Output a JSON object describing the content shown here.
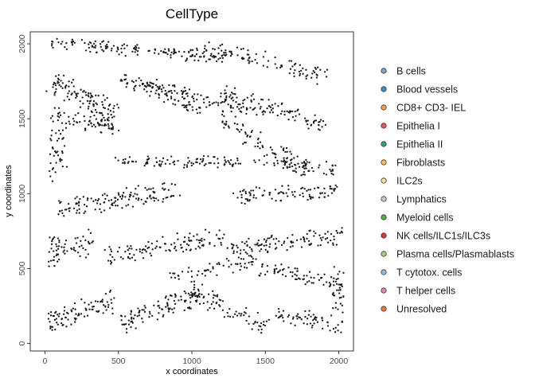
{
  "chart_data": {
    "type": "scatter",
    "title": "CellType",
    "xlabel": "x coordinates",
    "ylabel": "y coordinates",
    "xlim": [
      -100,
      2100
    ],
    "ylim": [
      -50,
      2080
    ],
    "xticks": [
      0,
      500,
      1000,
      1500,
      2000
    ],
    "yticks": [
      0,
      500,
      1000,
      1500,
      2000
    ],
    "xtick_labels": [
      "0",
      "500",
      "1000",
      "1500",
      "2000"
    ],
    "ytick_labels": [
      "0",
      "500",
      "1000",
      "1500",
      "2000"
    ],
    "grid": false,
    "legend_position": "right",
    "point_color": "#1a1a1a",
    "series": [
      {
        "name": "B cells",
        "color": "#7fa6c8"
      },
      {
        "name": "Blood vessels",
        "color": "#3f8fc7"
      },
      {
        "name": "CD8+ CD3- IEL",
        "color": "#f2a341"
      },
      {
        "name": "Epithelia I",
        "color": "#e05a6e"
      },
      {
        "name": "Epithelia II",
        "color": "#3aa36b"
      },
      {
        "name": "Fibroblasts",
        "color": "#f5c065"
      },
      {
        "name": "ILC2s",
        "color": "#f2e8a6"
      },
      {
        "name": "Lymphatics",
        "color": "#c9cbd0"
      },
      {
        "name": "Myeloid cells",
        "color": "#55b04b"
      },
      {
        "name": "NK cells/ILC1s/ILC3s",
        "color": "#d83a3a"
      },
      {
        "name": "Plasma cells/Plasmablasts",
        "color": "#a6d08d"
      },
      {
        "name": "T cytotox. cells",
        "color": "#8fc1e0"
      },
      {
        "name": "T helper cells",
        "color": "#d68fb8"
      },
      {
        "name": "Unresolved",
        "color": "#e8784a"
      }
    ],
    "regions": [
      {
        "cx": 640,
        "cy": 1960,
        "rx": 600,
        "ry": 55,
        "angle": -5,
        "n": 150
      },
      {
        "cx": 1500,
        "cy": 1880,
        "rx": 430,
        "ry": 70,
        "angle": -14,
        "n": 90
      },
      {
        "cx": 270,
        "cy": 1640,
        "rx": 250,
        "ry": 90,
        "angle": -28,
        "n": 110
      },
      {
        "cx": 800,
        "cy": 1660,
        "rx": 300,
        "ry": 50,
        "angle": -22,
        "n": 70
      },
      {
        "cx": 1050,
        "cy": 1640,
        "rx": 450,
        "ry": 60,
        "angle": -14,
        "n": 110
      },
      {
        "cx": 1550,
        "cy": 1570,
        "rx": 380,
        "ry": 60,
        "angle": -18,
        "n": 90
      },
      {
        "cx": 280,
        "cy": 1480,
        "rx": 240,
        "ry": 60,
        "angle": -12,
        "n": 70
      },
      {
        "cx": 90,
        "cy": 1270,
        "rx": 60,
        "ry": 200,
        "angle": 0,
        "n": 40
      },
      {
        "cx": 1480,
        "cy": 1330,
        "rx": 340,
        "ry": 80,
        "angle": -28,
        "n": 80
      },
      {
        "cx": 900,
        "cy": 1210,
        "rx": 450,
        "ry": 45,
        "angle": 0,
        "n": 90
      },
      {
        "cx": 1700,
        "cy": 1190,
        "rx": 280,
        "ry": 60,
        "angle": -8,
        "n": 60
      },
      {
        "cx": 500,
        "cy": 960,
        "rx": 420,
        "ry": 80,
        "angle": 10,
        "n": 130
      },
      {
        "cx": 1640,
        "cy": 1000,
        "rx": 360,
        "ry": 60,
        "angle": 3,
        "n": 90
      },
      {
        "cx": 200,
        "cy": 640,
        "rx": 140,
        "ry": 100,
        "angle": 20,
        "n": 40
      },
      {
        "cx": 820,
        "cy": 650,
        "rx": 420,
        "ry": 80,
        "angle": 8,
        "n": 110
      },
      {
        "cx": 1650,
        "cy": 680,
        "rx": 380,
        "ry": 70,
        "angle": 6,
        "n": 110
      },
      {
        "cx": 1750,
        "cy": 450,
        "rx": 300,
        "ry": 60,
        "angle": -10,
        "n": 70
      },
      {
        "cx": 1150,
        "cy": 500,
        "rx": 300,
        "ry": 70,
        "angle": 12,
        "n": 60
      },
      {
        "cx": 250,
        "cy": 210,
        "rx": 240,
        "ry": 90,
        "angle": 20,
        "n": 90
      },
      {
        "cx": 780,
        "cy": 230,
        "rx": 280,
        "ry": 90,
        "angle": 20,
        "n": 100
      },
      {
        "cx": 1250,
        "cy": 230,
        "rx": 280,
        "ry": 80,
        "angle": -25,
        "n": 80
      },
      {
        "cx": 1800,
        "cy": 160,
        "rx": 230,
        "ry": 70,
        "angle": -10,
        "n": 60
      },
      {
        "cx": 60,
        "cy": 600,
        "rx": 40,
        "ry": 120,
        "angle": 0,
        "n": 25
      },
      {
        "cx": 1990,
        "cy": 300,
        "rx": 50,
        "ry": 220,
        "angle": 0,
        "n": 30
      }
    ]
  }
}
